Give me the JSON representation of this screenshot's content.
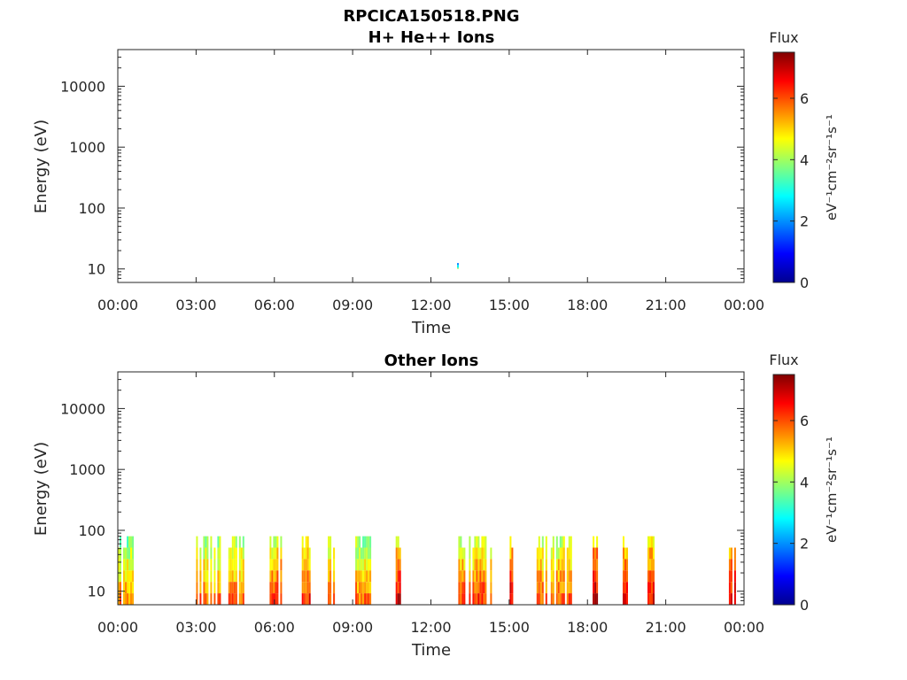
{
  "figure": {
    "title_line1": "RPCICA150518.PNG"
  },
  "chart_data": [
    {
      "type": "heatmap",
      "title": "H+ He++ Ions",
      "xlabel": "Time",
      "ylabel": "Energy (eV)",
      "x_ticks": [
        "00:00",
        "03:00",
        "06:00",
        "09:00",
        "12:00",
        "15:00",
        "18:00",
        "21:00",
        "00:00"
      ],
      "x_range_hours": [
        0,
        24
      ],
      "y_scale": "log",
      "y_range": [
        6,
        40000
      ],
      "y_ticks": [
        10,
        100,
        1000,
        10000
      ],
      "y_tick_labels": [
        "10",
        "100",
        "1000",
        "10000"
      ],
      "colorbar": {
        "label": "Flux",
        "unit": "eV⁻¹cm⁻²sr⁻¹s⁻¹",
        "range": [
          0,
          7.5
        ],
        "ticks": [
          "0",
          "2",
          "4",
          "6"
        ],
        "colormap": "jet"
      },
      "bursts": [
        {
          "start_h": 13.0,
          "end_h": 13.05,
          "e_min": 10,
          "e_max": 13,
          "intensity": 3.5
        }
      ]
    },
    {
      "type": "heatmap",
      "title": "Other Ions",
      "xlabel": "Time",
      "ylabel": "Energy (eV)",
      "x_ticks": [
        "00:00",
        "03:00",
        "06:00",
        "09:00",
        "12:00",
        "15:00",
        "18:00",
        "21:00",
        "00:00"
      ],
      "x_range_hours": [
        0,
        24
      ],
      "y_scale": "log",
      "y_range": [
        6,
        40000
      ],
      "y_ticks": [
        10,
        100,
        1000,
        10000
      ],
      "y_tick_labels": [
        "10",
        "100",
        "1000",
        "10000"
      ],
      "colorbar": {
        "label": "Flux",
        "unit": "eV⁻¹cm⁻²sr⁻¹s⁻¹",
        "range": [
          0,
          7.5
        ],
        "ticks": [
          "0",
          "2",
          "4",
          "6"
        ],
        "colormap": "jet"
      },
      "bursts": [
        {
          "start_h": 0.0,
          "end_h": 0.6,
          "e_min": 6,
          "e_max": 80,
          "intensity": 5.6
        },
        {
          "start_h": 3.0,
          "end_h": 3.9,
          "e_min": 6,
          "e_max": 80,
          "intensity": 5.8
        },
        {
          "start_h": 4.1,
          "end_h": 4.8,
          "e_min": 6,
          "e_max": 80,
          "intensity": 5.8
        },
        {
          "start_h": 5.75,
          "end_h": 6.3,
          "e_min": 6,
          "e_max": 80,
          "intensity": 6.3
        },
        {
          "start_h": 7.05,
          "end_h": 7.35,
          "e_min": 6,
          "e_max": 80,
          "intensity": 6.3
        },
        {
          "start_h": 8.05,
          "end_h": 8.3,
          "e_min": 6,
          "e_max": 80,
          "intensity": 6.2
        },
        {
          "start_h": 9.1,
          "end_h": 9.7,
          "e_min": 6,
          "e_max": 80,
          "intensity": 5.8
        },
        {
          "start_h": 10.65,
          "end_h": 10.8,
          "e_min": 6,
          "e_max": 80,
          "intensity": 6.8
        },
        {
          "start_h": 13.05,
          "end_h": 14.3,
          "e_min": 6,
          "e_max": 80,
          "intensity": 6.2
        },
        {
          "start_h": 14.95,
          "end_h": 15.2,
          "e_min": 6,
          "e_max": 80,
          "intensity": 6.8
        },
        {
          "start_h": 16.05,
          "end_h": 17.4,
          "e_min": 6,
          "e_max": 80,
          "intensity": 6.0
        },
        {
          "start_h": 18.2,
          "end_h": 18.45,
          "e_min": 6,
          "e_max": 80,
          "intensity": 7.0
        },
        {
          "start_h": 19.35,
          "end_h": 19.6,
          "e_min": 6,
          "e_max": 80,
          "intensity": 6.8
        },
        {
          "start_h": 20.3,
          "end_h": 20.55,
          "e_min": 6,
          "e_max": 80,
          "intensity": 6.6
        },
        {
          "start_h": 23.35,
          "end_h": 23.7,
          "e_min": 6,
          "e_max": 80,
          "intensity": 6.8
        }
      ]
    }
  ]
}
